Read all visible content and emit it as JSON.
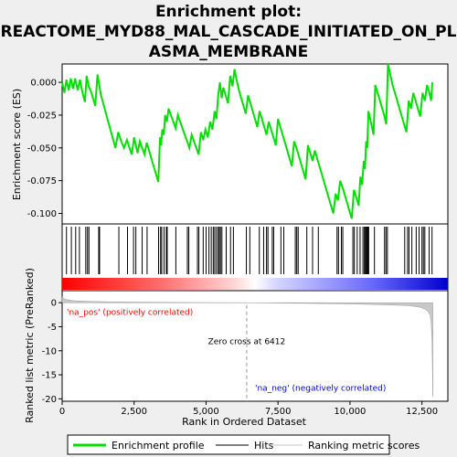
{
  "title_line1": "Enrichment plot:",
  "title_line2": "REACTOME_MYD88_MAL_CASCADE_INITIATED_ON_PL",
  "title_line3": "ASMA_MEMBRANE",
  "legend": {
    "items": [
      "Enrichment profile",
      "Hits",
      "Ranking metric scores"
    ],
    "colors": [
      "#00e000",
      "#000000",
      "#c8c8c8"
    ]
  },
  "chart_data": {
    "type": "line",
    "xlim": [
      0,
      13400
    ],
    "x_ticks": [
      0,
      2500,
      5000,
      7500,
      10000,
      12500
    ],
    "x_tick_labels": [
      "0",
      "2,500",
      "5,000",
      "7,500",
      "10,000",
      "12,500"
    ],
    "xlabel": "Rank in Ordered Dataset",
    "top_panel": {
      "ylabel": "Enrichment score (ES)",
      "ylim": [
        -0.108,
        0.014
      ],
      "y_ticks": [
        0.0,
        -0.025,
        -0.05,
        -0.075,
        -0.1
      ],
      "y_tick_labels": [
        "0.000",
        "-0.025",
        "-0.050",
        "-0.075",
        "-0.100"
      ],
      "series": [
        {
          "color": "#00e000",
          "x": [
            0,
            80,
            150,
            230,
            300,
            380,
            450,
            540,
            620,
            700,
            790,
            850,
            920,
            1000,
            1070,
            1150,
            1230,
            1290,
            1350,
            1450,
            1550,
            1650,
            1750,
            1850,
            1950,
            2050,
            2150,
            2250,
            2340,
            2420,
            2500,
            2560,
            2620,
            2700,
            2780,
            2860,
            2940,
            3020,
            3100,
            3180,
            3260,
            3340,
            3400,
            3440,
            3480,
            3530,
            3580,
            3640,
            3700,
            3780,
            3860,
            3940,
            4020,
            4100,
            4180,
            4260,
            4340,
            4420,
            4500,
            4580,
            4660,
            4740,
            4820,
            4900,
            4980,
            5060,
            5140,
            5220,
            5300,
            5360,
            5420,
            5480,
            5540,
            5600,
            5680,
            5760,
            5840,
            5920,
            5990,
            6060,
            6140,
            6220,
            6300,
            6380,
            6460,
            6540,
            6620,
            6700,
            6780,
            6860,
            6940,
            7020,
            7100,
            7180,
            7260,
            7340,
            7420,
            7500,
            7580,
            7660,
            7740,
            7820,
            7900,
            7980,
            8060,
            8140,
            8220,
            8300,
            8380,
            8460,
            8540,
            8620,
            8700,
            8780,
            8860,
            8940,
            9020,
            9100,
            9180,
            9260,
            9340,
            9420,
            9500,
            9580,
            9660,
            9740,
            9820,
            9900,
            9980,
            10060,
            10140,
            10220,
            10300,
            10360,
            10420,
            10480,
            10520,
            10560,
            10600,
            10640,
            10700,
            10760,
            10820,
            10880,
            10960,
            11040,
            11120,
            11200,
            11260,
            11320,
            11400,
            11480,
            11560,
            11640,
            11720,
            11800,
            11880,
            11960,
            12040,
            12120,
            12200,
            12280,
            12360,
            12440,
            12520,
            12600,
            12680,
            12760,
            12820,
            12860
          ],
          "y": [
            0.0,
            -0.008,
            0.002,
            -0.006,
            0.003,
            -0.005,
            0.003,
            -0.006,
            0.002,
            -0.007,
            -0.015,
            0.005,
            -0.003,
            -0.007,
            -0.012,
            -0.018,
            0.006,
            -0.002,
            -0.01,
            -0.018,
            -0.026,
            -0.034,
            -0.042,
            -0.05,
            -0.038,
            -0.045,
            -0.05,
            -0.044,
            -0.05,
            -0.055,
            -0.042,
            -0.048,
            -0.054,
            -0.045,
            -0.05,
            -0.055,
            -0.046,
            -0.052,
            -0.058,
            -0.064,
            -0.07,
            -0.076,
            -0.042,
            -0.048,
            -0.036,
            -0.04,
            -0.025,
            -0.03,
            -0.02,
            -0.025,
            -0.03,
            -0.035,
            -0.025,
            -0.03,
            -0.035,
            -0.04,
            -0.045,
            -0.05,
            -0.04,
            -0.045,
            -0.05,
            -0.055,
            -0.038,
            -0.044,
            -0.036,
            -0.042,
            -0.03,
            -0.036,
            -0.022,
            -0.028,
            -0.01,
            0.0,
            -0.012,
            -0.004,
            -0.01,
            -0.016,
            0.005,
            -0.003,
            0.01,
            0.002,
            -0.006,
            -0.012,
            -0.018,
            -0.024,
            -0.01,
            -0.016,
            -0.022,
            -0.028,
            -0.034,
            -0.022,
            -0.028,
            -0.034,
            -0.04,
            -0.03,
            -0.036,
            -0.042,
            -0.048,
            -0.028,
            -0.034,
            -0.04,
            -0.046,
            -0.052,
            -0.058,
            -0.064,
            -0.045,
            -0.05,
            -0.056,
            -0.062,
            -0.068,
            -0.074,
            -0.048,
            -0.054,
            -0.06,
            -0.052,
            -0.058,
            -0.064,
            -0.07,
            -0.076,
            -0.082,
            -0.088,
            -0.094,
            -0.1,
            -0.085,
            -0.09,
            -0.075,
            -0.08,
            -0.086,
            -0.092,
            -0.098,
            -0.104,
            -0.082,
            -0.088,
            -0.094,
            -0.072,
            -0.078,
            -0.06,
            -0.066,
            -0.045,
            -0.05,
            -0.022,
            -0.028,
            -0.034,
            -0.04,
            -0.002,
            -0.008,
            -0.014,
            -0.02,
            -0.026,
            -0.032,
            0.014,
            0.006,
            -0.002,
            -0.008,
            -0.014,
            -0.02,
            -0.026,
            -0.032,
            -0.038,
            -0.014,
            -0.02,
            -0.008,
            -0.014,
            -0.02,
            -0.026,
            -0.008,
            -0.014,
            -0.002,
            -0.008,
            -0.014,
            0.0
          ]
        }
      ]
    },
    "hits_panel": {
      "hit_ranks": [
        150,
        320,
        470,
        600,
        820,
        880,
        930,
        1270,
        1300,
        1970,
        2270,
        2480,
        2560,
        2780,
        2950,
        3350,
        3420,
        3460,
        3540,
        3620,
        3650,
        3950,
        4350,
        4400,
        4700,
        4750,
        4900,
        5000,
        5100,
        5180,
        5250,
        5300,
        5360,
        5420,
        5460,
        5500,
        5550,
        5700,
        5850,
        5950,
        6400,
        6520,
        6850,
        7000,
        7100,
        7150,
        7300,
        7350,
        7600,
        7700,
        8100,
        8150,
        8200,
        8500,
        8700,
        8900,
        9550,
        9600,
        9700,
        9750,
        10100,
        10150,
        10250,
        10350,
        10450,
        10500,
        10520,
        10550,
        10580,
        10600,
        10620,
        10650,
        10850,
        11200,
        11250,
        11300,
        11900,
        12000,
        12050,
        12150,
        12300,
        12400,
        12500,
        12550,
        12600,
        12750,
        12850
      ],
      "color_bar_gradient": [
        "#ff0000",
        "#ff9a9a",
        "#ffffff",
        "#9a9aff",
        "#0000cc"
      ]
    },
    "bottom_panel": {
      "ylabel": "Ranked list metric (PreRanked)",
      "ylim": [
        -20.5,
        2.5
      ],
      "y_ticks": [
        0,
        -5,
        -10,
        -15,
        -20
      ],
      "y_tick_labels": [
        "0",
        "-5",
        "-10",
        "-15",
        "-20"
      ],
      "metric_x": [
        0,
        100,
        400,
        1000,
        2000,
        4000,
        6412,
        8000,
        10000,
        11000,
        12000,
        12400,
        12600,
        12700,
        12780,
        12820,
        12850,
        12880
      ],
      "metric_y": [
        1.2,
        0.7,
        0.4,
        0.25,
        0.15,
        0.05,
        0.0,
        -0.1,
        -0.25,
        -0.4,
        -0.6,
        -0.9,
        -1.3,
        -1.8,
        -2.5,
        -4.0,
        -8.0,
        -19.5
      ],
      "zero_cross": 6412,
      "zero_cross_label": "Zero cross at 6412",
      "pos_label": "'na_pos' (positively correlated)",
      "neg_label": "'na_neg' (negatively correlated)",
      "pos_color": "#ff0000",
      "neg_color": "#0000cc"
    }
  }
}
